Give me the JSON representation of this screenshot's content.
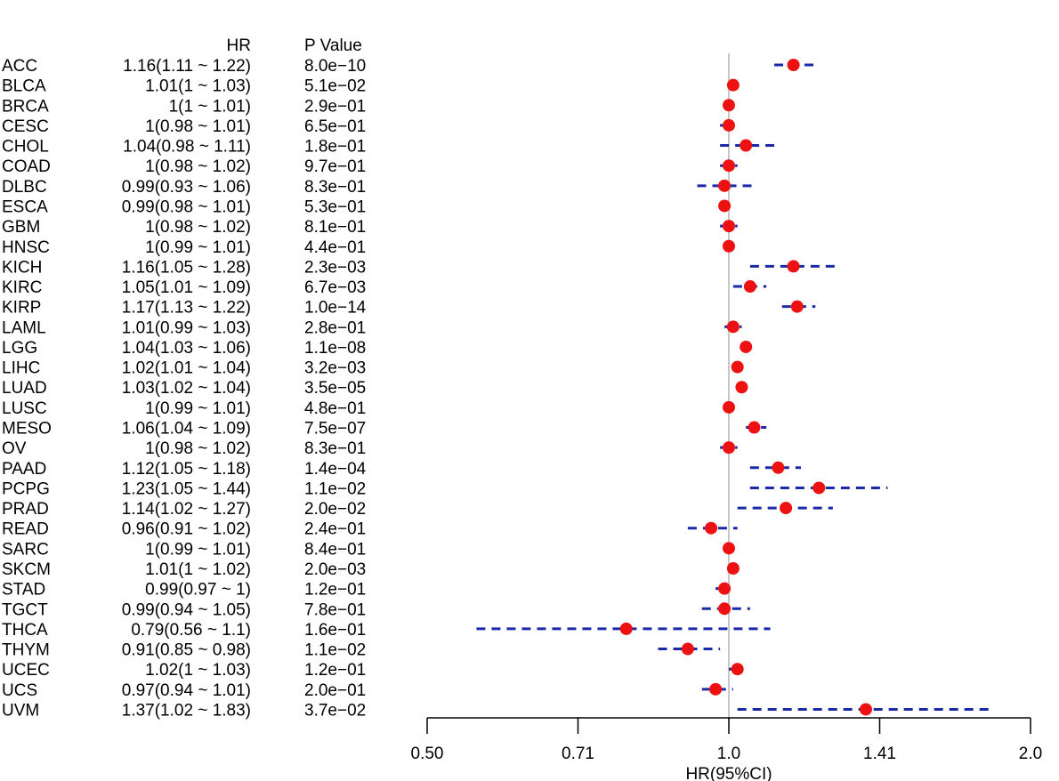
{
  "chart_data": {
    "type": "forest",
    "xlabel": "HR(95%CI)",
    "x_scale": "log2",
    "xlim": [
      0.5,
      2.0
    ],
    "x_ticks": [
      {
        "value": 0.5,
        "label": "0.50"
      },
      {
        "value": 0.7071,
        "label": "0.71"
      },
      {
        "value": 1.0,
        "label": "1.0"
      },
      {
        "value": 1.4142,
        "label": "1.41"
      },
      {
        "value": 2.0,
        "label": "2.0"
      }
    ],
    "reference_line": 1.0,
    "columns": {
      "hr": "HR",
      "p": "P Value"
    },
    "colors": {
      "point": "#ee1111",
      "ci": "#1a2aa6",
      "reference": "#c8c8c8",
      "axis": "#000000"
    },
    "rows": [
      {
        "label": "ACC",
        "hr": 1.16,
        "lo": 1.11,
        "hi": 1.22,
        "hr_text": "1.16(1.11 ~ 1.22)",
        "p": "8.0e−10"
      },
      {
        "label": "BLCA",
        "hr": 1.01,
        "lo": 1.0,
        "hi": 1.03,
        "hr_text": "1.01(1 ~ 1.03)",
        "p": "5.1e−02"
      },
      {
        "label": "BRCA",
        "hr": 1.0,
        "lo": 1.0,
        "hi": 1.01,
        "hr_text": "1(1 ~ 1.01)",
        "p": "2.9e−01"
      },
      {
        "label": "CESC",
        "hr": 1.0,
        "lo": 0.98,
        "hi": 1.01,
        "hr_text": "1(0.98 ~ 1.01)",
        "p": "6.5e−01"
      },
      {
        "label": "CHOL",
        "hr": 1.04,
        "lo": 0.98,
        "hi": 1.11,
        "hr_text": "1.04(0.98 ~ 1.11)",
        "p": "1.8e−01"
      },
      {
        "label": "COAD",
        "hr": 1.0,
        "lo": 0.98,
        "hi": 1.02,
        "hr_text": "1(0.98 ~ 1.02)",
        "p": "9.7e−01"
      },
      {
        "label": "DLBC",
        "hr": 0.99,
        "lo": 0.93,
        "hi": 1.06,
        "hr_text": "0.99(0.93 ~ 1.06)",
        "p": "8.3e−01"
      },
      {
        "label": "ESCA",
        "hr": 0.99,
        "lo": 0.98,
        "hi": 1.01,
        "hr_text": "0.99(0.98 ~ 1.01)",
        "p": "5.3e−01"
      },
      {
        "label": "GBM",
        "hr": 1.0,
        "lo": 0.98,
        "hi": 1.02,
        "hr_text": "1(0.98 ~ 1.02)",
        "p": "8.1e−01"
      },
      {
        "label": "HNSC",
        "hr": 1.0,
        "lo": 0.99,
        "hi": 1.01,
        "hr_text": "1(0.99 ~ 1.01)",
        "p": "4.4e−01"
      },
      {
        "label": "KICH",
        "hr": 1.16,
        "lo": 1.05,
        "hi": 1.28,
        "hr_text": "1.16(1.05 ~ 1.28)",
        "p": "2.3e−03"
      },
      {
        "label": "KIRC",
        "hr": 1.05,
        "lo": 1.01,
        "hi": 1.09,
        "hr_text": "1.05(1.01 ~ 1.09)",
        "p": "6.7e−03"
      },
      {
        "label": "KIRP",
        "hr": 1.17,
        "lo": 1.13,
        "hi": 1.22,
        "hr_text": "1.17(1.13 ~ 1.22)",
        "p": "1.0e−14"
      },
      {
        "label": "LAML",
        "hr": 1.01,
        "lo": 0.99,
        "hi": 1.03,
        "hr_text": "1.01(0.99 ~ 1.03)",
        "p": "2.8e−01"
      },
      {
        "label": "LGG",
        "hr": 1.04,
        "lo": 1.03,
        "hi": 1.06,
        "hr_text": "1.04(1.03 ~ 1.06)",
        "p": "1.1e−08"
      },
      {
        "label": "LIHC",
        "hr": 1.02,
        "lo": 1.01,
        "hi": 1.04,
        "hr_text": "1.02(1.01 ~ 1.04)",
        "p": "3.2e−03"
      },
      {
        "label": "LUAD",
        "hr": 1.03,
        "lo": 1.02,
        "hi": 1.04,
        "hr_text": "1.03(1.02 ~ 1.04)",
        "p": "3.5e−05"
      },
      {
        "label": "LUSC",
        "hr": 1.0,
        "lo": 0.99,
        "hi": 1.01,
        "hr_text": "1(0.99 ~ 1.01)",
        "p": "4.8e−01"
      },
      {
        "label": "MESO",
        "hr": 1.06,
        "lo": 1.04,
        "hi": 1.09,
        "hr_text": "1.06(1.04 ~ 1.09)",
        "p": "7.5e−07"
      },
      {
        "label": "OV",
        "hr": 1.0,
        "lo": 0.98,
        "hi": 1.02,
        "hr_text": "1(0.98 ~ 1.02)",
        "p": "8.3e−01"
      },
      {
        "label": "PAAD",
        "hr": 1.12,
        "lo": 1.05,
        "hi": 1.18,
        "hr_text": "1.12(1.05 ~ 1.18)",
        "p": "1.4e−04"
      },
      {
        "label": "PCPG",
        "hr": 1.23,
        "lo": 1.05,
        "hi": 1.44,
        "hr_text": "1.23(1.05 ~ 1.44)",
        "p": "1.1e−02"
      },
      {
        "label": "PRAD",
        "hr": 1.14,
        "lo": 1.02,
        "hi": 1.27,
        "hr_text": "1.14(1.02 ~ 1.27)",
        "p": "2.0e−02"
      },
      {
        "label": "READ",
        "hr": 0.96,
        "lo": 0.91,
        "hi": 1.02,
        "hr_text": "0.96(0.91 ~ 1.02)",
        "p": "2.4e−01"
      },
      {
        "label": "SARC",
        "hr": 1.0,
        "lo": 0.99,
        "hi": 1.01,
        "hr_text": "1(0.99 ~ 1.01)",
        "p": "8.4e−01"
      },
      {
        "label": "SKCM",
        "hr": 1.01,
        "lo": 1.0,
        "hi": 1.02,
        "hr_text": "1.01(1 ~ 1.02)",
        "p": "2.0e−03"
      },
      {
        "label": "STAD",
        "hr": 0.99,
        "lo": 0.97,
        "hi": 1.0,
        "hr_text": "0.99(0.97 ~ 1)",
        "p": "1.2e−01"
      },
      {
        "label": "TGCT",
        "hr": 0.99,
        "lo": 0.94,
        "hi": 1.05,
        "hr_text": "0.99(0.94 ~ 1.05)",
        "p": "7.8e−01"
      },
      {
        "label": "THCA",
        "hr": 0.79,
        "lo": 0.56,
        "hi": 1.1,
        "hr_text": "0.79(0.56 ~ 1.1)",
        "p": "1.6e−01"
      },
      {
        "label": "THYM",
        "hr": 0.91,
        "lo": 0.85,
        "hi": 0.98,
        "hr_text": "0.91(0.85 ~ 0.98)",
        "p": "1.1e−02"
      },
      {
        "label": "UCEC",
        "hr": 1.02,
        "lo": 1.0,
        "hi": 1.03,
        "hr_text": "1.02(1 ~ 1.03)",
        "p": "1.2e−01"
      },
      {
        "label": "UCS",
        "hr": 0.97,
        "lo": 0.94,
        "hi": 1.01,
        "hr_text": "0.97(0.94 ~ 1.01)",
        "p": "2.0e−01"
      },
      {
        "label": "UVM",
        "hr": 1.37,
        "lo": 1.02,
        "hi": 1.83,
        "hr_text": "1.37(1.02 ~ 1.83)",
        "p": "3.7e−02"
      }
    ]
  }
}
